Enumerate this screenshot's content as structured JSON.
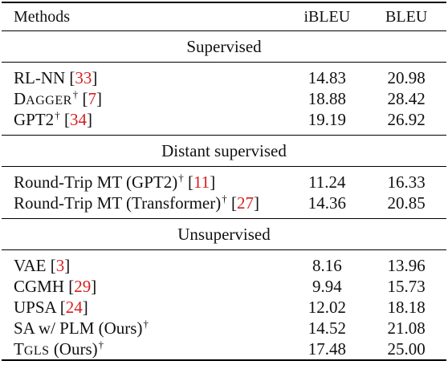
{
  "header": {
    "methods": "Methods",
    "ibleu": "iBLEU",
    "bleu": "BLEU"
  },
  "groups": [
    {
      "title": "Supervised",
      "rows": [
        {
          "name": "RL-NN",
          "dagger": false,
          "ref": "33",
          "ibleu": "14.83",
          "bleu": "20.98"
        },
        {
          "name_first": "D",
          "name_rest": "AGGER",
          "dagger": true,
          "ref": "7",
          "ibleu": "18.88",
          "bleu": "28.42"
        },
        {
          "name": "GPT2",
          "dagger": true,
          "ref": "34",
          "ibleu": "19.19",
          "bleu": "26.92"
        }
      ]
    },
    {
      "title": "Distant supervised",
      "rows": [
        {
          "name": "Round-Trip MT (GPT2)",
          "dagger": true,
          "ref": "11",
          "ibleu": "11.24",
          "bleu": "16.33"
        },
        {
          "name": "Round-Trip MT (Transformer)",
          "dagger": true,
          "ref": "27",
          "ibleu": "14.36",
          "bleu": "20.85"
        }
      ]
    },
    {
      "title": "Unsupervised",
      "rows": [
        {
          "name": "VAE",
          "dagger": false,
          "ref": "3",
          "ibleu": "8.16",
          "bleu": "13.96"
        },
        {
          "name": "CGMH",
          "dagger": false,
          "ref": "29",
          "ibleu": "9.94",
          "bleu": "15.73"
        },
        {
          "name": "UPSA",
          "dagger": false,
          "ref": "24",
          "ibleu": "12.02",
          "bleu": "18.18"
        },
        {
          "name": "SA w/ PLM (Ours)",
          "dagger": true,
          "ibleu": "14.52",
          "bleu": "21.08"
        },
        {
          "name_first": "T",
          "name_rest": "GLS",
          "name_tail": " (Ours)",
          "dagger": true,
          "ibleu": "17.48",
          "bleu": "25.00",
          "bold": true
        }
      ]
    }
  ],
  "dagger_symbol": "†"
}
